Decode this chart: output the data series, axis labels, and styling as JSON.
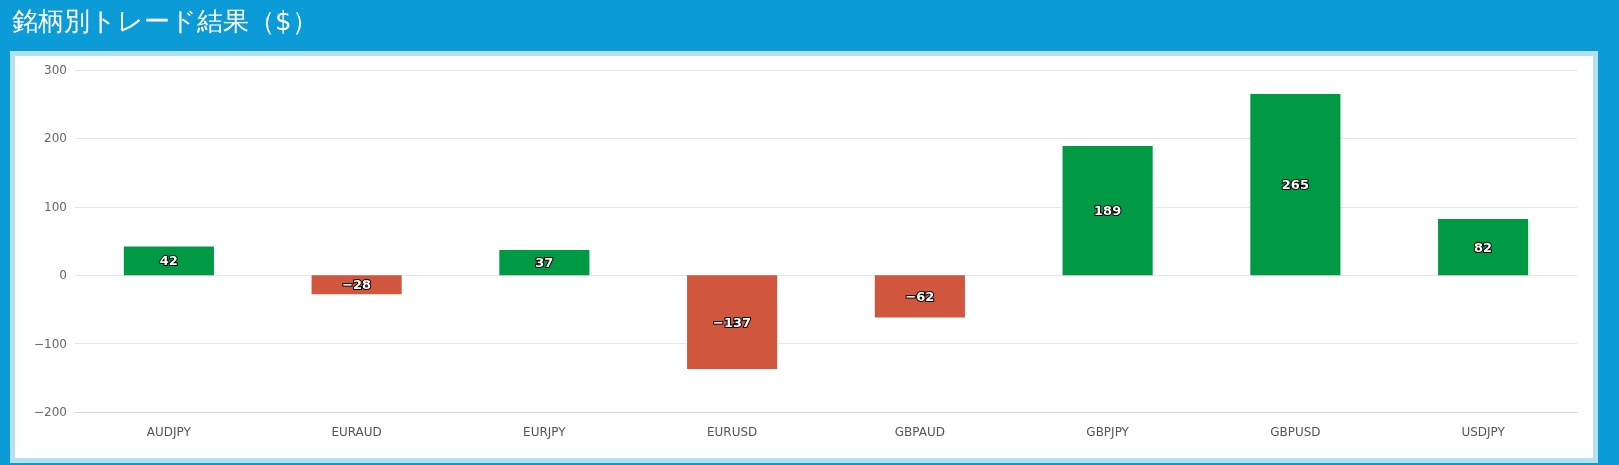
{
  "chart_data": {
    "type": "bar",
    "title": "銘柄別トレード結果（$）",
    "categories": [
      "AUDJPY",
      "EURAUD",
      "EURJPY",
      "EURUSD",
      "GBPAUD",
      "GBPJPY",
      "GBPUSD",
      "USDJPY"
    ],
    "values": [
      42,
      -28,
      37,
      -137,
      -62,
      189,
      265,
      82
    ],
    "colors": [
      "#009a44",
      "#d0573e",
      "#009a44",
      "#d0573e",
      "#d0573e",
      "#009a44",
      "#009a44",
      "#009a44"
    ],
    "value_labels": [
      "42",
      "−28",
      "37",
      "−137",
      "−62",
      "189",
      "265",
      "82"
    ],
    "ylim": [
      -200,
      300
    ],
    "yticks": [
      {
        "value": -200,
        "label": "−200"
      },
      {
        "value": -100,
        "label": "−100"
      },
      0,
      100,
      200,
      300
    ],
    "grid": "y"
  }
}
